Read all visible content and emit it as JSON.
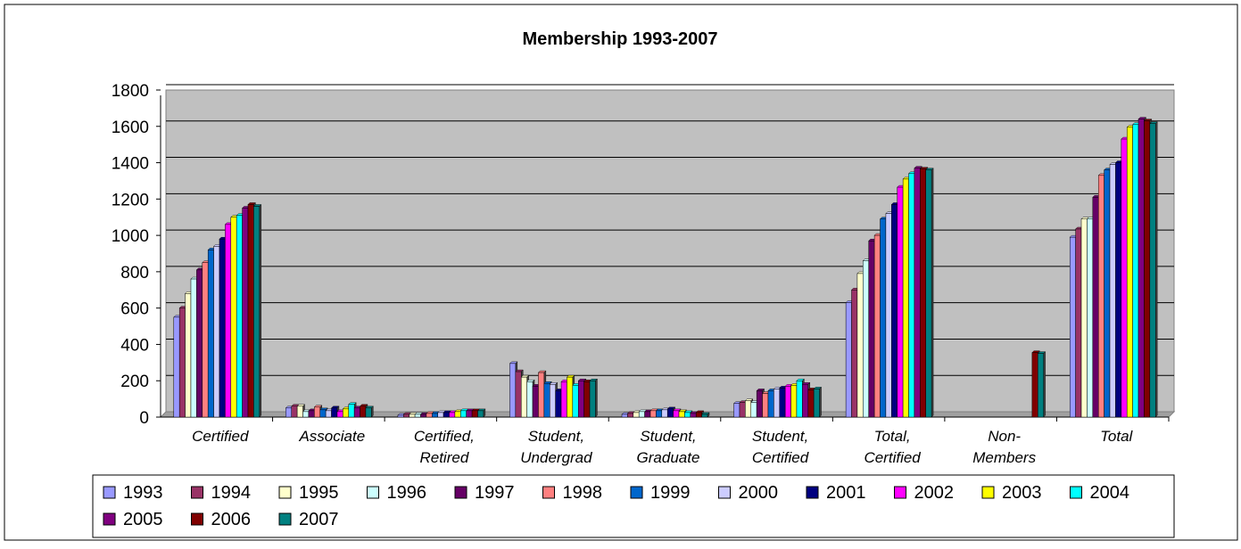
{
  "chart_data": {
    "type": "bar",
    "title": "Membership 1993-2007",
    "xlabel": "",
    "ylabel": "",
    "ylim": [
      0,
      1800
    ],
    "yticks": [
      0,
      200,
      400,
      600,
      800,
      1000,
      1200,
      1400,
      1600,
      1800
    ],
    "grid": true,
    "legend_position": "bottom",
    "categories": [
      [
        "Certified"
      ],
      [
        "Associate"
      ],
      [
        "Certified,",
        "Retired"
      ],
      [
        "Student,",
        "Undergrad"
      ],
      [
        "Student,",
        "Graduate"
      ],
      [
        "Student,",
        "Certified"
      ],
      [
        "Total,",
        "Certified"
      ],
      [
        "Non-",
        "Members"
      ],
      [
        "Total"
      ]
    ],
    "series": [
      {
        "name": "1993",
        "color": "#9999ff",
        "values": [
          550,
          50,
          10,
          295,
          15,
          75,
          630,
          0,
          990
        ]
      },
      {
        "name": "1994",
        "color": "#993366",
        "values": [
          600,
          60,
          15,
          250,
          20,
          80,
          700,
          0,
          1035
        ]
      },
      {
        "name": "1995",
        "color": "#ffffcc",
        "values": [
          680,
          60,
          15,
          220,
          25,
          90,
          790,
          0,
          1090
        ]
      },
      {
        "name": "1996",
        "color": "#ccffff",
        "values": [
          760,
          30,
          15,
          195,
          30,
          80,
          860,
          0,
          1090
        ]
      },
      {
        "name": "1997",
        "color": "#660066",
        "values": [
          810,
          35,
          15,
          170,
          30,
          145,
          970,
          0,
          1210
        ]
      },
      {
        "name": "1998",
        "color": "#ff8080",
        "values": [
          850,
          55,
          20,
          245,
          35,
          130,
          1000,
          0,
          1330
        ]
      },
      {
        "name": "1999",
        "color": "#0066cc",
        "values": [
          920,
          40,
          20,
          185,
          35,
          145,
          1090,
          0,
          1360
        ]
      },
      {
        "name": "2000",
        "color": "#ccccff",
        "values": [
          940,
          35,
          25,
          180,
          40,
          155,
          1120,
          0,
          1390
        ]
      },
      {
        "name": "2001",
        "color": "#000080",
        "values": [
          980,
          50,
          25,
          145,
          45,
          160,
          1170,
          0,
          1400
        ]
      },
      {
        "name": "2002",
        "color": "#ff00ff",
        "values": [
          1060,
          30,
          25,
          195,
          35,
          170,
          1265,
          0,
          1530
        ]
      },
      {
        "name": "2003",
        "color": "#ffff00",
        "values": [
          1100,
          45,
          30,
          220,
          30,
          175,
          1310,
          0,
          1595
        ]
      },
      {
        "name": "2004",
        "color": "#00ffff",
        "values": [
          1110,
          70,
          35,
          175,
          25,
          200,
          1340,
          0,
          1610
        ]
      },
      {
        "name": "2005",
        "color": "#800080",
        "values": [
          1150,
          50,
          35,
          200,
          20,
          180,
          1370,
          0,
          1640
        ]
      },
      {
        "name": "2006",
        "color": "#800000",
        "values": [
          1170,
          60,
          35,
          195,
          25,
          150,
          1365,
          355,
          1630
        ]
      },
      {
        "name": "2007",
        "color": "#008080",
        "values": [
          1160,
          50,
          35,
          200,
          15,
          155,
          1360,
          350,
          1615
        ]
      }
    ]
  },
  "colors": {
    "plot_background": "#c0c0c0",
    "gridline": "#000000",
    "frame": "#000000"
  }
}
